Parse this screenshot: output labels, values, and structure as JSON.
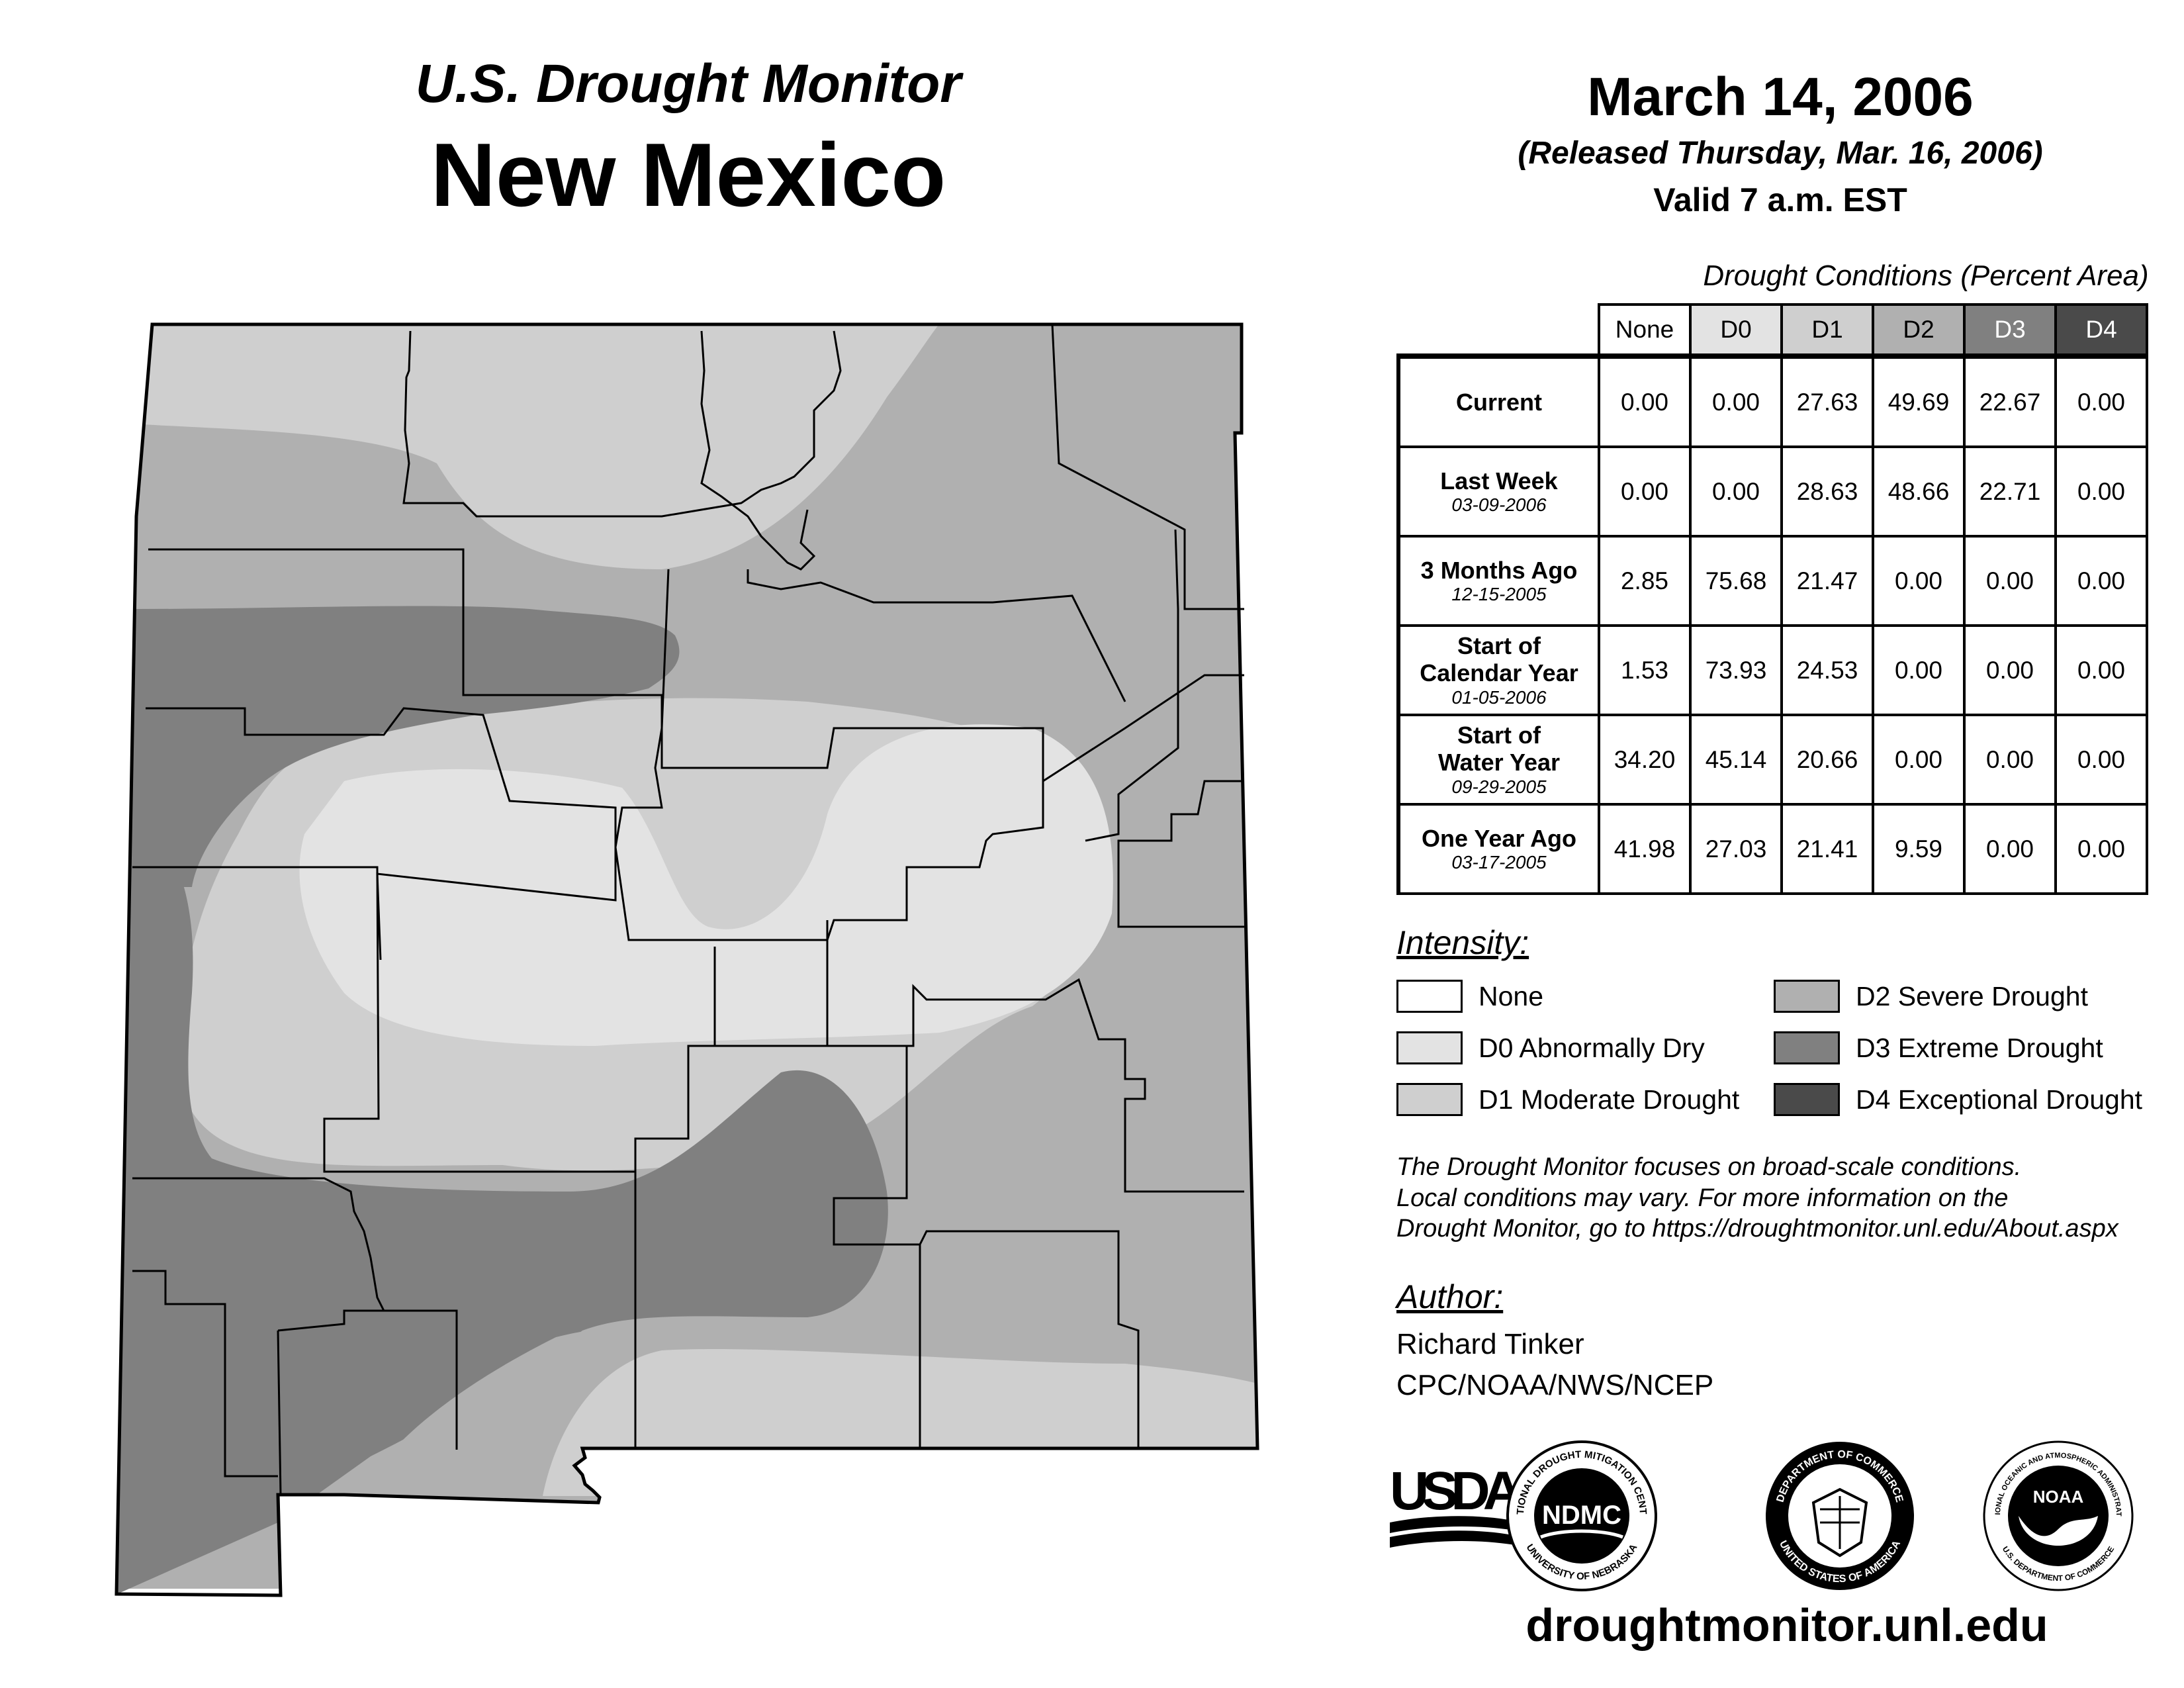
{
  "header": {
    "product": "U.S. Drought Monitor",
    "state": "New Mexico",
    "date": "March 14, 2006",
    "released": "(Released Thursday, Mar. 16, 2006)",
    "valid": "Valid 7 a.m. EST"
  },
  "table": {
    "title": "Drought Conditions (Percent Area)",
    "columns": [
      "None",
      "D0",
      "D1",
      "D2",
      "D3",
      "D4"
    ],
    "rows": [
      {
        "label": "Current",
        "label2": "",
        "date": "",
        "values": [
          "0.00",
          "0.00",
          "27.63",
          "49.69",
          "22.67",
          "0.00"
        ]
      },
      {
        "label": "Last Week",
        "label2": "",
        "date": "03-09-2006",
        "values": [
          "0.00",
          "0.00",
          "28.63",
          "48.66",
          "22.71",
          "0.00"
        ]
      },
      {
        "label": "3 Months Ago",
        "label2": "",
        "date": "12-15-2005",
        "values": [
          "2.85",
          "75.68",
          "21.47",
          "0.00",
          "0.00",
          "0.00"
        ]
      },
      {
        "label": "Start of",
        "label2": "Calendar Year",
        "date": "01-05-2006",
        "values": [
          "1.53",
          "73.93",
          "24.53",
          "0.00",
          "0.00",
          "0.00"
        ]
      },
      {
        "label": "Start of",
        "label2": "Water Year",
        "date": "09-29-2005",
        "values": [
          "34.20",
          "45.14",
          "20.66",
          "0.00",
          "0.00",
          "0.00"
        ]
      },
      {
        "label": "One Year Ago",
        "label2": "",
        "date": "03-17-2005",
        "values": [
          "41.98",
          "27.03",
          "21.41",
          "9.59",
          "0.00",
          "0.00"
        ]
      }
    ]
  },
  "legend": {
    "title": "Intensity:",
    "items": [
      {
        "label": "None",
        "color": "#ffffff"
      },
      {
        "label": "D0 Abnormally Dry",
        "color": "#e3e3e3"
      },
      {
        "label": "D1 Moderate Drought",
        "color": "#cfcfcf"
      },
      {
        "label": "D2 Severe Drought",
        "color": "#b0b0b0"
      },
      {
        "label": "D3 Extreme Drought",
        "color": "#808080"
      },
      {
        "label": "D4 Exceptional Drought",
        "color": "#4a4a4a"
      }
    ]
  },
  "note": {
    "line1": "The Drought Monitor focuses on broad-scale conditions.",
    "line2": "Local conditions may vary. For more information on the",
    "line3": "Drought Monitor, go to https://droughtmonitor.unl.edu/About.aspx"
  },
  "author": {
    "title": "Author:",
    "name": "Richard Tinker",
    "org": "CPC/NOAA/NWS/NCEP"
  },
  "logos": {
    "usda": "USDA",
    "ndmc": "NDMC",
    "ndmc_ring_top": "NATIONAL DROUGHT MITIGATION CENTER",
    "ndmc_ring_bottom": "UNIVERSITY OF NEBRASKA",
    "doc_ring_top": "DEPARTMENT OF COMMERCE",
    "doc_ring_bottom": "UNITED STATES OF AMERICA",
    "noaa": "NOAA",
    "noaa_ring_top": "NATIONAL OCEANIC AND ATMOSPHERIC ADMINISTRATION",
    "noaa_ring_bottom": "U.S. DEPARTMENT OF COMMERCE"
  },
  "url": "droughtmonitor.unl.edu",
  "map": {
    "colors": {
      "d1": "#cfcfcf",
      "d2": "#b0b0b0",
      "d3": "#808080",
      "d0": "#e3e3e3",
      "border": "#000000"
    }
  }
}
